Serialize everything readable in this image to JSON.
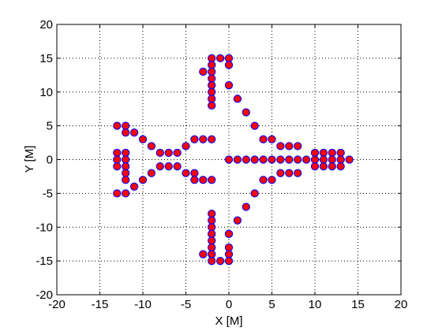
{
  "chart_data": {
    "type": "scatter",
    "title": "",
    "xlabel": "X [M]",
    "ylabel": "Y [M]",
    "xlim": [
      -20,
      20
    ],
    "ylim": [
      -20,
      20
    ],
    "xticks": [
      -20,
      -15,
      -10,
      -5,
      0,
      5,
      10,
      15,
      20
    ],
    "yticks": [
      -20,
      -15,
      -10,
      -5,
      0,
      5,
      10,
      15,
      20
    ],
    "xtick_labels": [
      "-20",
      "-15",
      "-10",
      "-5",
      "0",
      "5",
      "10",
      "15",
      "20"
    ],
    "ytick_labels": [
      "-20",
      "-15",
      "-10",
      "-5",
      "0",
      "5",
      "10",
      "15",
      "20"
    ],
    "grid": true,
    "grid_style": "dotted",
    "marker": "circle",
    "marker_face_color": "#ff0000",
    "marker_edge_color": "#0000ff",
    "axis_color": "#000000",
    "background_color": "#ffffff",
    "series": [
      {
        "x": [
          -2,
          -1,
          0,
          -2,
          0,
          -3,
          -2,
          0,
          -2,
          1,
          -2,
          2,
          -2,
          -2,
          3,
          -13,
          -12,
          -2,
          -11,
          -12,
          4,
          5,
          -10,
          -4,
          -3,
          -2,
          6,
          7,
          8,
          -13,
          -12,
          -9,
          -5,
          -8,
          -7,
          -6,
          10,
          11,
          12,
          13,
          -13,
          -12,
          0,
          1,
          2,
          3,
          4,
          5,
          6,
          7,
          8,
          9,
          10,
          11,
          12,
          13,
          14,
          -13,
          -12,
          -8,
          -7,
          -6,
          10,
          11,
          12,
          13,
          -12,
          -9,
          -5,
          -4,
          6,
          7,
          8,
          -12,
          -10,
          -4,
          -3,
          -2,
          4,
          5,
          -13,
          -12,
          -11,
          -2,
          3,
          -2,
          2,
          -2,
          -2,
          -2,
          1,
          -2,
          0,
          -2,
          0,
          -3,
          -2,
          0,
          -2,
          -1,
          0
        ],
        "y": [
          15,
          15,
          15,
          14,
          14,
          13,
          13,
          11,
          12,
          9,
          11,
          7,
          10,
          9,
          5,
          5,
          5,
          8,
          4,
          4,
          3,
          3,
          3,
          3,
          3,
          3,
          2,
          2,
          2,
          1,
          1,
          2,
          2,
          1,
          1,
          1,
          1,
          1,
          1,
          1,
          0,
          0,
          0,
          0,
          0,
          0,
          0,
          0,
          0,
          0,
          0,
          0,
          0,
          0,
          0,
          0,
          0,
          -1,
          -1,
          -1,
          -1,
          -1,
          -1,
          -1,
          -1,
          -1,
          -2,
          -2,
          -2,
          -2,
          -2,
          -2,
          -2,
          -3,
          -3,
          -3,
          -3,
          -3,
          -3,
          -3,
          -5,
          -5,
          -4,
          -8,
          -5,
          -10,
          -7,
          -9,
          -11,
          -12,
          -9,
          -13,
          -11,
          -14,
          -13,
          -14,
          -14,
          -14,
          -15,
          -15,
          -15
        ]
      }
    ]
  }
}
